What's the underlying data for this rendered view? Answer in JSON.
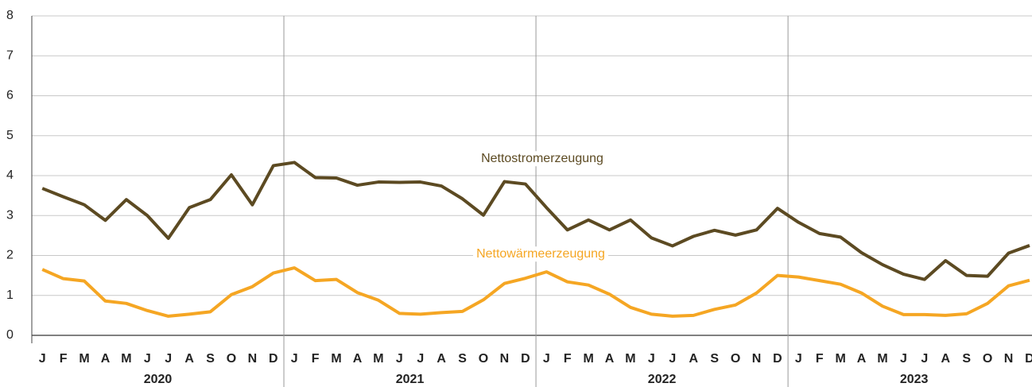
{
  "chart_data": {
    "type": "line",
    "categories": [
      "J",
      "F",
      "M",
      "A",
      "M",
      "J",
      "J",
      "A",
      "S",
      "O",
      "N",
      "D",
      "J",
      "F",
      "M",
      "A",
      "M",
      "J",
      "J",
      "A",
      "S",
      "O",
      "N",
      "D",
      "J",
      "F",
      "M",
      "A",
      "M",
      "J",
      "J",
      "A",
      "S",
      "O",
      "N",
      "D",
      "J",
      "F",
      "M",
      "A",
      "M",
      "J",
      "J",
      "A",
      "S",
      "O",
      "N",
      "D"
    ],
    "years": [
      "2020",
      "2021",
      "2022",
      "2023"
    ],
    "ylim": [
      0,
      8
    ],
    "yticks": [
      0,
      1,
      2,
      3,
      4,
      5,
      6,
      7,
      8
    ],
    "grid": true,
    "series": [
      {
        "name": "Nettostromerzeugung",
        "color": "#5c4a22",
        "values": [
          3.68,
          3.47,
          3.27,
          2.88,
          3.4,
          3.0,
          2.43,
          3.2,
          3.4,
          4.02,
          3.27,
          4.25,
          4.33,
          3.95,
          3.94,
          3.76,
          3.84,
          3.83,
          3.84,
          3.74,
          3.42,
          3.01,
          3.85,
          3.79,
          3.2,
          2.64,
          2.89,
          2.64,
          2.89,
          2.44,
          2.24,
          2.48,
          2.63,
          2.51,
          2.64,
          3.18,
          2.83,
          2.55,
          2.46,
          2.07,
          1.77,
          1.53,
          1.4,
          1.87,
          1.5,
          1.48,
          2.06,
          2.25
        ]
      },
      {
        "name": "Nettowärmeerzeugung",
        "color": "#f5a623",
        "values": [
          1.65,
          1.42,
          1.36,
          0.86,
          0.8,
          0.62,
          0.48,
          0.53,
          0.59,
          1.02,
          1.22,
          1.56,
          1.69,
          1.37,
          1.4,
          1.07,
          0.88,
          0.55,
          0.53,
          0.57,
          0.6,
          0.89,
          1.3,
          1.43,
          1.59,
          1.34,
          1.26,
          1.03,
          0.7,
          0.53,
          0.48,
          0.5,
          0.65,
          0.76,
          1.06,
          1.5,
          1.46,
          1.37,
          1.28,
          1.06,
          0.73,
          0.52,
          0.52,
          0.5,
          0.54,
          0.8,
          1.24,
          1.38
        ]
      }
    ]
  }
}
